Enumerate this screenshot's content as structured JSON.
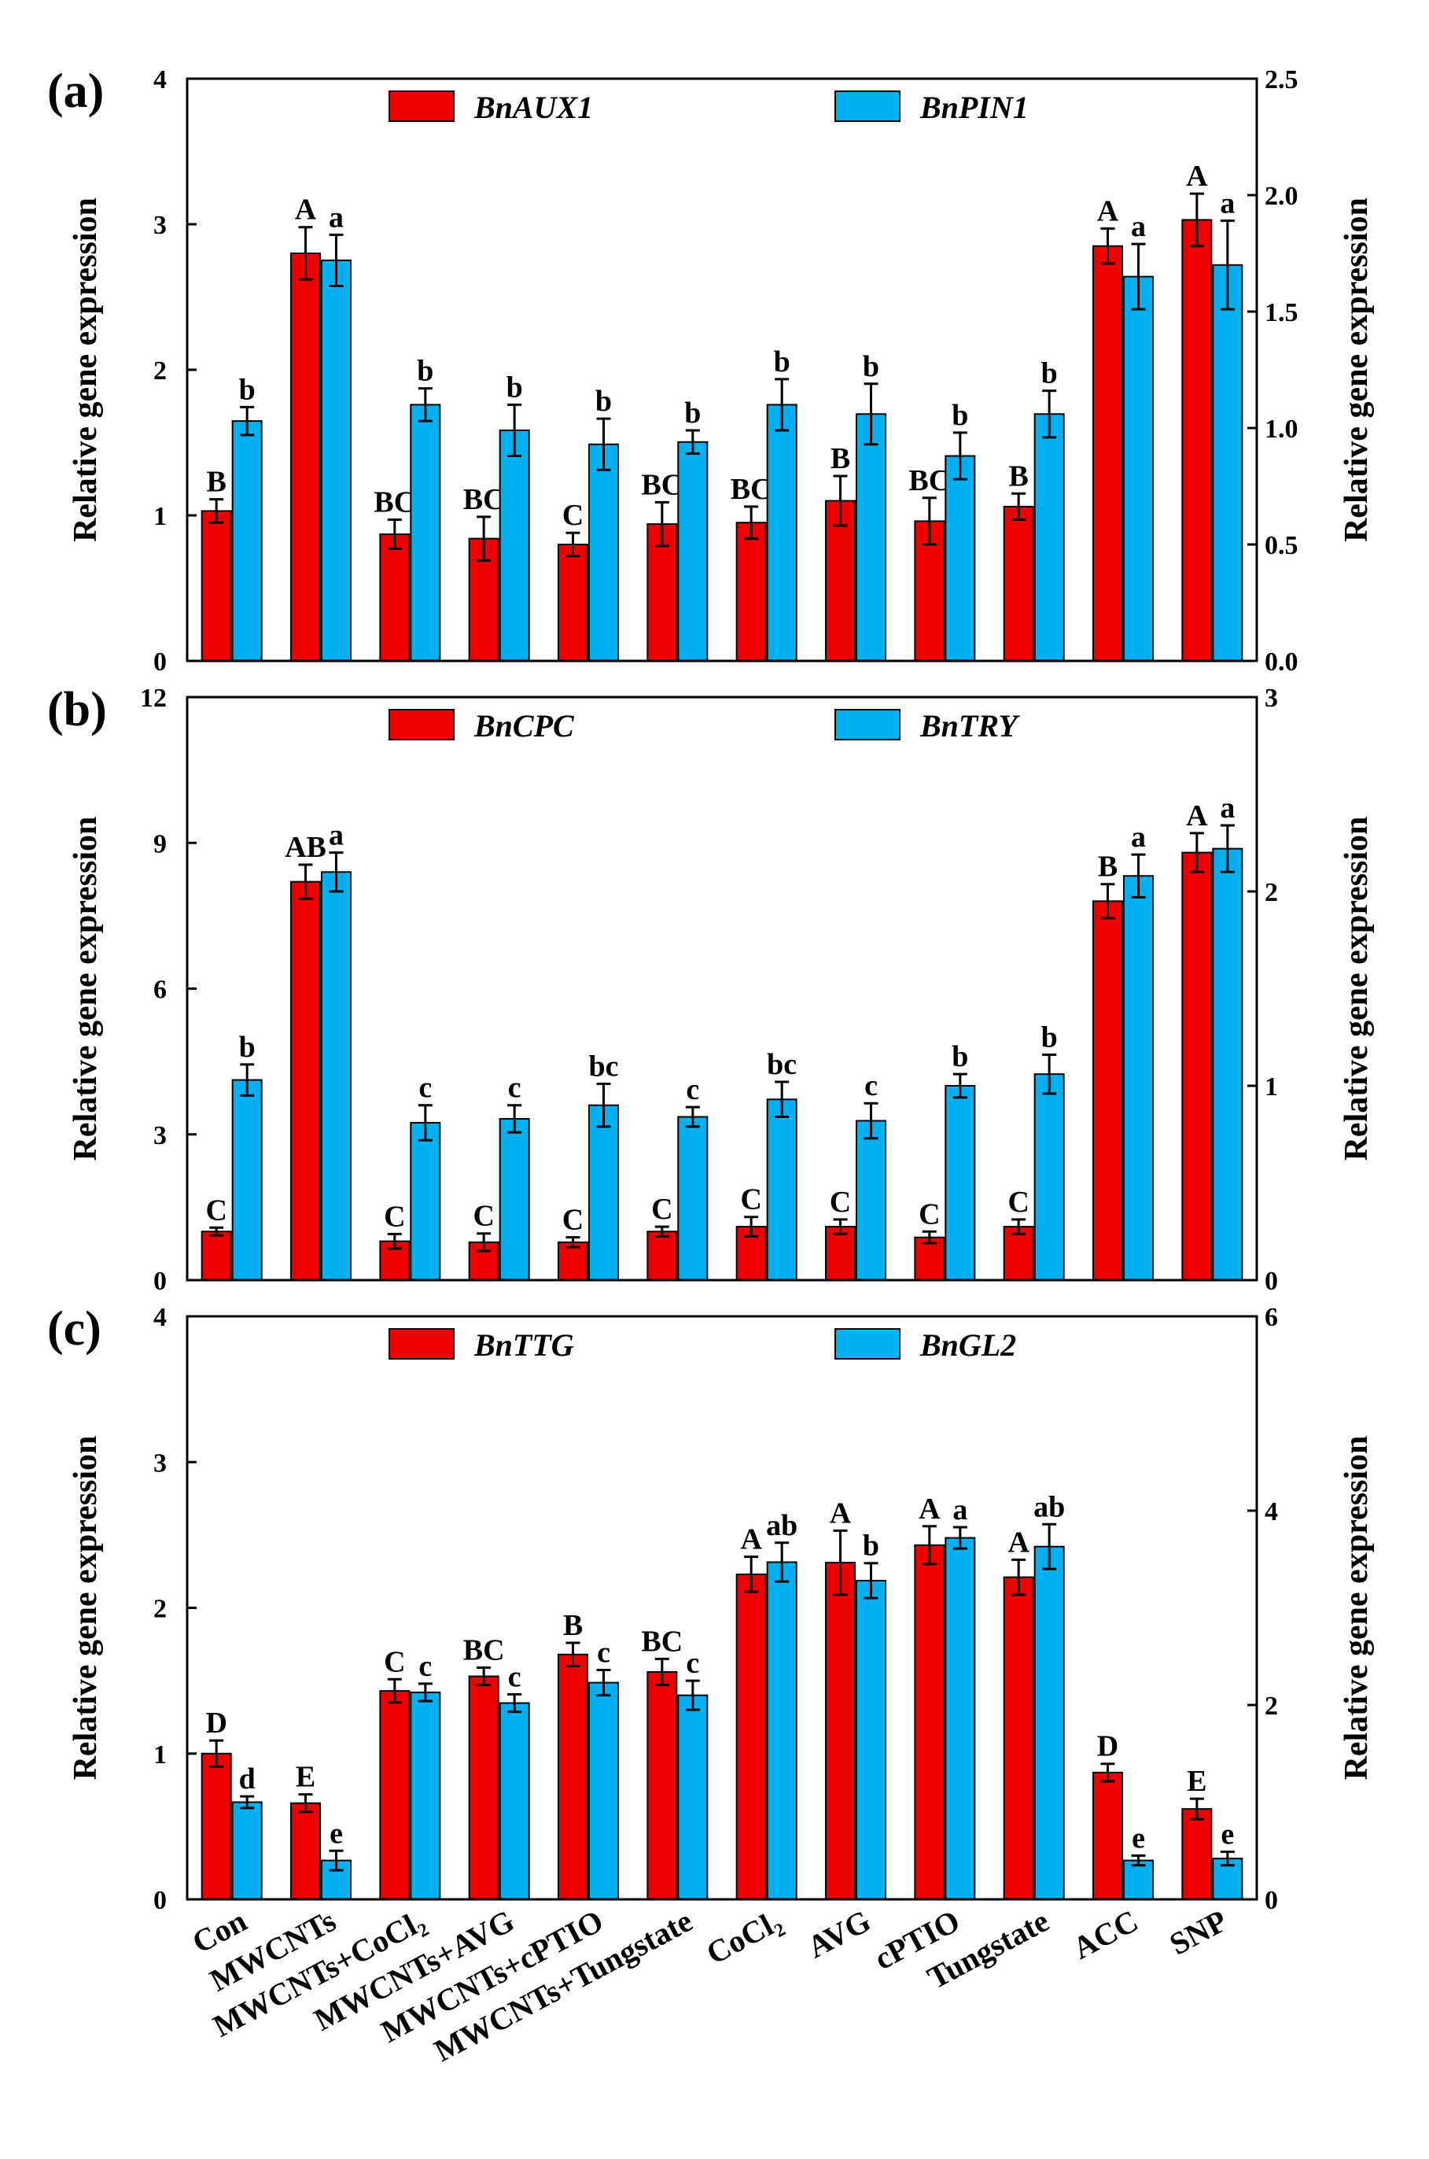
{
  "colors": {
    "series1": "#ee0000",
    "series2": "#00b0f0",
    "stroke": "#000000"
  },
  "categories": [
    "Con",
    "MWCNTs",
    "MWCNTs+CoCl₂",
    "MWCNTs+AVG",
    "MWCNTs+cPTIO",
    "MWCNTs+Tungstate",
    "CoCl₂",
    "AVG",
    "cPTIO",
    "Tungstate",
    "ACC",
    "SNP"
  ],
  "chart_data": [
    {
      "type": "bar",
      "panel_label": "(a)",
      "ylabel": "Relative gene expression",
      "ylabel_right": "Relative gene expression",
      "ylim": [
        0,
        4
      ],
      "y_ticks": [
        "0",
        "1",
        "2",
        "3",
        "4"
      ],
      "ylim_right": [
        0,
        2.5
      ],
      "y_ticks_right": [
        "0.0",
        "0.5",
        "1.0",
        "1.5",
        "2.0",
        "2.5"
      ],
      "series": [
        {
          "name": "BnAUX1",
          "axis": "left",
          "values": [
            1.03,
            2.8,
            0.87,
            0.84,
            0.8,
            0.94,
            0.95,
            1.1,
            0.96,
            1.06,
            2.85,
            3.03
          ],
          "errors": [
            0.08,
            0.18,
            0.1,
            0.15,
            0.08,
            0.15,
            0.11,
            0.17,
            0.16,
            0.09,
            0.12,
            0.18
          ],
          "labels": [
            "B",
            "A",
            "BC",
            "BC",
            "C",
            "BC",
            "BC",
            "B",
            "BC",
            "B",
            "A",
            "A"
          ]
        },
        {
          "name": "BnPIN1",
          "axis": "right",
          "values": [
            1.03,
            1.72,
            1.1,
            0.99,
            0.93,
            0.94,
            1.1,
            1.06,
            0.88,
            1.06,
            1.65,
            1.7
          ],
          "errors": [
            0.06,
            0.11,
            0.07,
            0.11,
            0.11,
            0.05,
            0.11,
            0.13,
            0.1,
            0.1,
            0.14,
            0.19
          ],
          "labels": [
            "b",
            "a",
            "b",
            "b",
            "b",
            "b",
            "b",
            "b",
            "b",
            "b",
            "a",
            "a"
          ]
        }
      ]
    },
    {
      "type": "bar",
      "panel_label": "(b)",
      "ylabel": "Relative gene expression",
      "ylabel_right": "Relative gene expression",
      "ylim": [
        0,
        12
      ],
      "y_ticks": [
        "0",
        "3",
        "6",
        "9",
        "12"
      ],
      "ylim_right": [
        0,
        3
      ],
      "y_ticks_right": [
        "0",
        "1",
        "2",
        "3"
      ],
      "series": [
        {
          "name": "BnCPC",
          "axis": "left",
          "values": [
            1.0,
            8.2,
            0.8,
            0.78,
            0.78,
            1.0,
            1.1,
            1.1,
            0.88,
            1.1,
            7.8,
            8.8
          ],
          "errors": [
            0.08,
            0.35,
            0.15,
            0.18,
            0.1,
            0.1,
            0.2,
            0.15,
            0.12,
            0.15,
            0.35,
            0.4
          ],
          "labels": [
            "C",
            "AB",
            "C",
            "C",
            "C",
            "C",
            "C",
            "C",
            "C",
            "C",
            "B",
            "A"
          ]
        },
        {
          "name": "BnTRY",
          "axis": "right",
          "values": [
            1.03,
            2.1,
            0.81,
            0.83,
            0.9,
            0.84,
            0.93,
            0.82,
            1.0,
            1.06,
            2.08,
            2.22
          ],
          "errors": [
            0.08,
            0.1,
            0.09,
            0.07,
            0.11,
            0.05,
            0.09,
            0.09,
            0.06,
            0.1,
            0.11,
            0.12
          ],
          "labels": [
            "b",
            "a",
            "c",
            "c",
            "bc",
            "c",
            "bc",
            "c",
            "b",
            "b",
            "a",
            "a"
          ]
        }
      ]
    },
    {
      "type": "bar",
      "panel_label": "(c)",
      "ylabel": "Relative gene expression",
      "ylabel_right": "Relative gene expression",
      "ylim": [
        0,
        4
      ],
      "y_ticks": [
        "0",
        "1",
        "2",
        "3",
        "4"
      ],
      "ylim_right": [
        0,
        6
      ],
      "y_ticks_right": [
        "0",
        "2",
        "4",
        "6"
      ],
      "series": [
        {
          "name": "BnTTG",
          "axis": "left",
          "values": [
            1.0,
            0.66,
            1.43,
            1.53,
            1.68,
            1.56,
            2.23,
            2.31,
            2.43,
            2.21,
            0.87,
            0.62
          ],
          "errors": [
            0.09,
            0.06,
            0.08,
            0.06,
            0.08,
            0.09,
            0.12,
            0.22,
            0.13,
            0.12,
            0.06,
            0.07
          ],
          "labels": [
            "D",
            "E",
            "C",
            "BC",
            "B",
            "BC",
            "A",
            "A",
            "A",
            "A",
            "D",
            "E"
          ]
        },
        {
          "name": "BnGL2",
          "axis": "right",
          "values": [
            1.0,
            0.4,
            2.13,
            2.02,
            2.23,
            2.1,
            3.47,
            3.28,
            3.72,
            3.63,
            0.4,
            0.42
          ],
          "errors": [
            0.06,
            0.1,
            0.09,
            0.09,
            0.13,
            0.15,
            0.2,
            0.18,
            0.11,
            0.23,
            0.05,
            0.07
          ],
          "labels": [
            "d",
            "e",
            "c",
            "c",
            "c",
            "c",
            "ab",
            "b",
            "a",
            "ab",
            "e",
            "e"
          ]
        }
      ]
    }
  ]
}
